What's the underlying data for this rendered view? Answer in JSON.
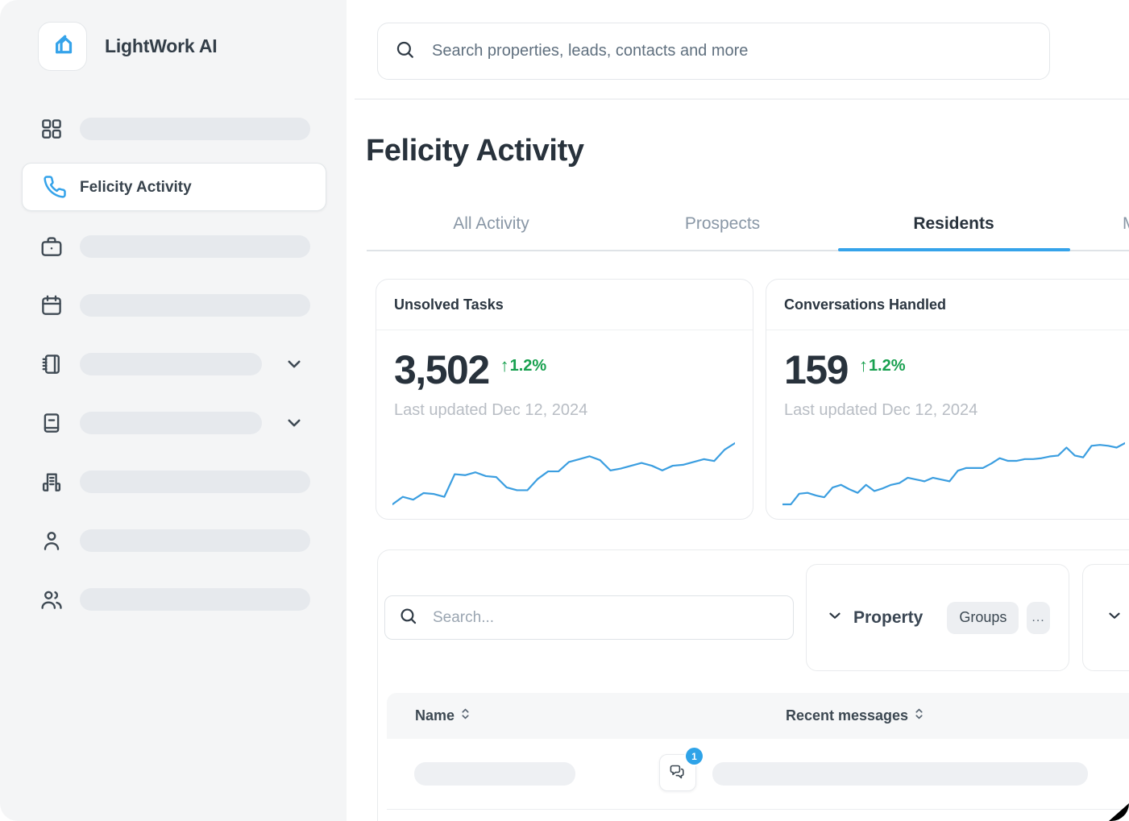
{
  "sidebar": {
    "logo_text": "LightWork AI",
    "items": [
      {
        "icon": "grid-icon",
        "skeleton": true
      },
      {
        "icon": "phone-icon",
        "label": "Felicity Activity",
        "active": true
      },
      {
        "icon": "briefcase-icon",
        "skeleton": true
      },
      {
        "icon": "calendar-icon",
        "skeleton": true
      },
      {
        "icon": "notebook-icon",
        "skeleton": true,
        "expandable": true
      },
      {
        "icon": "book-icon",
        "skeleton": true,
        "expandable": true
      },
      {
        "icon": "building-icon",
        "skeleton": true
      },
      {
        "icon": "user-icon",
        "skeleton": true
      },
      {
        "icon": "users-icon",
        "skeleton": true
      }
    ]
  },
  "topbar": {
    "search_placeholder": "Search properties, leads, contacts and more"
  },
  "page": {
    "title": "Felicity Activity"
  },
  "tabs": [
    {
      "label": "All Activity",
      "active": false
    },
    {
      "label": "Prospects",
      "active": false
    },
    {
      "label": "Residents",
      "active": true
    },
    {
      "label": "M",
      "active": false,
      "clipped_at_right_edge": true
    }
  ],
  "stat_cards": [
    {
      "title": "Unsolved Tasks",
      "value": "3,502",
      "delta_arrow": "↑",
      "delta": "1.2%",
      "updated": "Last updated Dec 12, 2024"
    },
    {
      "title": "Conversations Handled",
      "value": "159",
      "delta_arrow": "↑",
      "delta": "1.2%",
      "updated": "Last updated Dec 12, 2024"
    }
  ],
  "chart_data": [
    {
      "type": "line",
      "card": "Unsolved Tasks",
      "title": "Unsolved Tasks trend sparkline",
      "axes_hidden": true,
      "color": "#3b9ee0",
      "values": [
        10,
        18,
        15,
        22,
        21,
        18,
        42,
        41,
        44,
        40,
        39,
        28,
        25,
        25,
        37,
        45,
        45,
        55,
        58,
        61,
        57,
        46,
        48,
        51,
        54,
        51,
        46,
        51,
        52,
        55,
        58,
        56,
        68,
        75
      ]
    },
    {
      "type": "line",
      "card": "Conversations Handled",
      "title": "Conversations Handled trend sparkline",
      "axes_hidden": true,
      "color": "#3b9ee0",
      "values": [
        8,
        8,
        20,
        21,
        18,
        16,
        27,
        30,
        25,
        21,
        30,
        23,
        26,
        30,
        32,
        38,
        36,
        34,
        38,
        36,
        34,
        46,
        49,
        49,
        49,
        54,
        60,
        57,
        57,
        59,
        59,
        60,
        62,
        63,
        72,
        63,
        61,
        74,
        75,
        74,
        72,
        77
      ]
    }
  ],
  "list_panel": {
    "search_placeholder": "Search...",
    "property_filter": {
      "label": "Property",
      "groups_button": "Groups",
      "more_button": "..."
    },
    "table": {
      "columns": [
        {
          "label": "Name",
          "sortable": true
        },
        {
          "label": "Recent messages",
          "sortable": true
        }
      ],
      "rows": [
        {
          "name_skeleton": true,
          "message_skeleton": true,
          "unread_badge": "1"
        }
      ]
    }
  },
  "colors": {
    "accent_blue": "#35a3ea",
    "sparkline_blue": "#3b9ee0",
    "badge_blue": "#2ea3e8",
    "green_delta": "#18a04f",
    "sidebar_bg": "#f4f5f6",
    "skeleton_gray": "#e6e9ed",
    "text_dark": "#28323c",
    "text_gray": "#8997a6"
  }
}
